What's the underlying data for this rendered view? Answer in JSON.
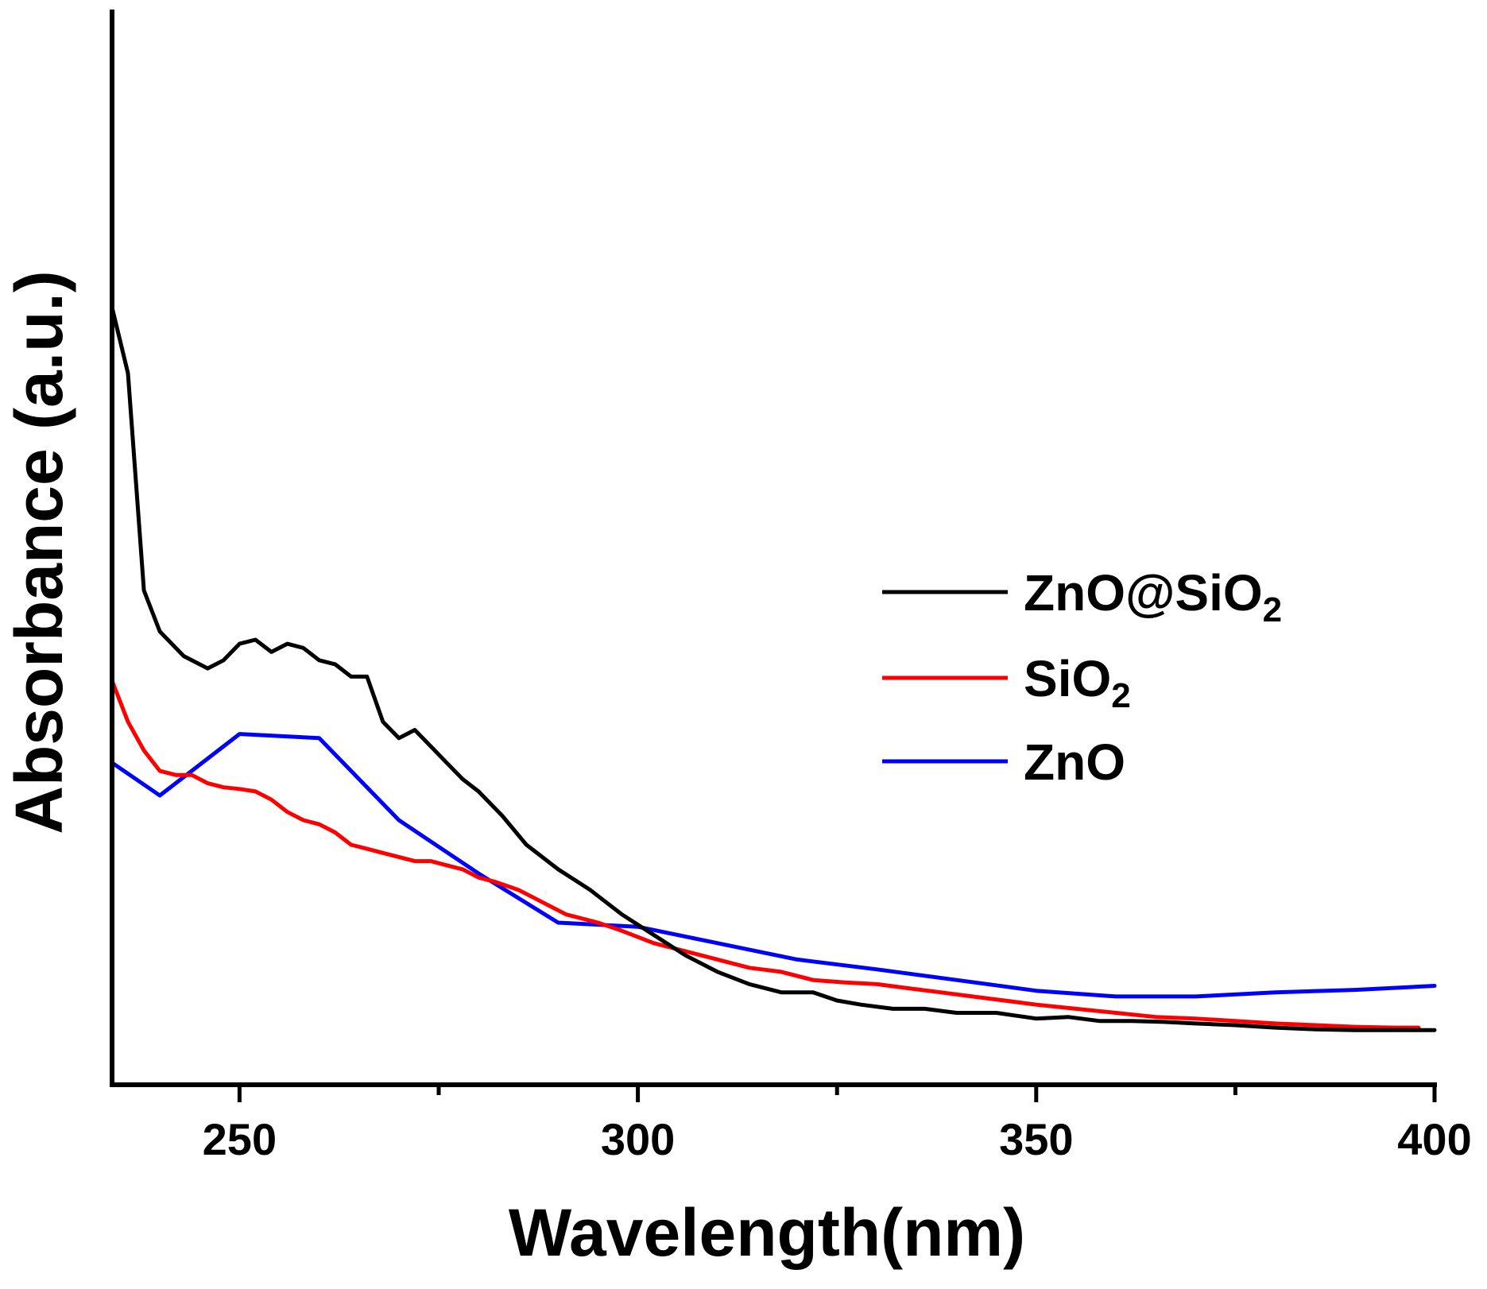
{
  "chart_data": {
    "type": "line",
    "title": "",
    "xlabel": "Wavelength(nm)",
    "ylabel": "Absorbance (a.u.)",
    "xlim": [
      234,
      400
    ],
    "ylim": [
      0,
      100
    ],
    "x_ticks": [
      250,
      300,
      350,
      400
    ],
    "x_tick_labels": [
      "250",
      "300",
      "350",
      "400"
    ],
    "x_minor_ticks": [
      275,
      325,
      375
    ],
    "y_ticks_visible": false,
    "grid": false,
    "legend_position": "right",
    "series": [
      {
        "name": "ZnO@SiO2",
        "label_main": "ZnO@SiO",
        "label_sub": "2",
        "color": "#000000",
        "points": [
          [
            234,
            87.5
          ],
          [
            236,
            79.5
          ],
          [
            238,
            53
          ],
          [
            240,
            48
          ],
          [
            243,
            45
          ],
          [
            246,
            43.5
          ],
          [
            248,
            44.5
          ],
          [
            250,
            46.5
          ],
          [
            252,
            47
          ],
          [
            254,
            45.5
          ],
          [
            256,
            46.5
          ],
          [
            258,
            46
          ],
          [
            260,
            44.5
          ],
          [
            262,
            44
          ],
          [
            264,
            42.5
          ],
          [
            266,
            42.5
          ],
          [
            268,
            37
          ],
          [
            270,
            35
          ],
          [
            272,
            36
          ],
          [
            274,
            34
          ],
          [
            276,
            32
          ],
          [
            278,
            30
          ],
          [
            280,
            28.5
          ],
          [
            283,
            25.5
          ],
          [
            286,
            22
          ],
          [
            290,
            19
          ],
          [
            294,
            16.5
          ],
          [
            298,
            13.5
          ],
          [
            302,
            11
          ],
          [
            306,
            8.5
          ],
          [
            310,
            6.5
          ],
          [
            314,
            5
          ],
          [
            318,
            4
          ],
          [
            322,
            4
          ],
          [
            325,
            3
          ],
          [
            328,
            2.5
          ],
          [
            332,
            2
          ],
          [
            336,
            2
          ],
          [
            340,
            1.5
          ],
          [
            345,
            1.5
          ],
          [
            350,
            0.8
          ],
          [
            354,
            1
          ],
          [
            358,
            0.5
          ],
          [
            362,
            0.5
          ],
          [
            366,
            0.4
          ],
          [
            370,
            0.2
          ],
          [
            375,
            0
          ],
          [
            380,
            -0.3
          ],
          [
            385,
            -0.5
          ],
          [
            390,
            -0.6
          ],
          [
            395,
            -0.6
          ],
          [
            400,
            -0.6
          ]
        ]
      },
      {
        "name": "SiO2",
        "label_main": "SiO",
        "label_sub": "2",
        "color": "#ff0000",
        "points": [
          [
            234,
            42
          ],
          [
            236,
            37
          ],
          [
            238,
            33.5
          ],
          [
            240,
            31
          ],
          [
            242,
            30.5
          ],
          [
            244,
            30.5
          ],
          [
            246,
            29.5
          ],
          [
            248,
            29
          ],
          [
            250,
            28.8
          ],
          [
            252,
            28.5
          ],
          [
            254,
            27.5
          ],
          [
            256,
            26
          ],
          [
            258,
            25
          ],
          [
            260,
            24.5
          ],
          [
            262,
            23.5
          ],
          [
            264,
            22
          ],
          [
            266,
            21.5
          ],
          [
            268,
            21
          ],
          [
            270,
            20.5
          ],
          [
            272,
            20
          ],
          [
            274,
            20
          ],
          [
            276,
            19.5
          ],
          [
            278,
            19
          ],
          [
            280,
            18
          ],
          [
            282,
            17.5
          ],
          [
            285,
            16.5
          ],
          [
            288,
            15
          ],
          [
            291,
            13.5
          ],
          [
            295,
            12.5
          ],
          [
            298,
            11.5
          ],
          [
            302,
            10
          ],
          [
            306,
            9
          ],
          [
            310,
            8
          ],
          [
            314,
            7
          ],
          [
            318,
            6.5
          ],
          [
            322,
            5.5
          ],
          [
            326,
            5.2
          ],
          [
            330,
            5
          ],
          [
            334,
            4.5
          ],
          [
            338,
            4
          ],
          [
            342,
            3.5
          ],
          [
            346,
            3
          ],
          [
            350,
            2.5
          ],
          [
            355,
            2
          ],
          [
            360,
            1.5
          ],
          [
            365,
            1
          ],
          [
            370,
            0.8
          ],
          [
            375,
            0.5
          ],
          [
            380,
            0.2
          ],
          [
            385,
            0
          ],
          [
            390,
            -0.2
          ],
          [
            395,
            -0.3
          ],
          [
            398,
            -0.3
          ]
        ]
      },
      {
        "name": "ZnO",
        "label_main": "ZnO",
        "label_sub": "",
        "color": "#0000ff",
        "points": [
          [
            234,
            32
          ],
          [
            240,
            28
          ],
          [
            250,
            35.5
          ],
          [
            260,
            35
          ],
          [
            270,
            25
          ],
          [
            280,
            18.5
          ],
          [
            290,
            12.5
          ],
          [
            300,
            12
          ],
          [
            310,
            10
          ],
          [
            320,
            8
          ],
          [
            330,
            6.8
          ],
          [
            340,
            5.5
          ],
          [
            350,
            4.2
          ],
          [
            360,
            3.5
          ],
          [
            370,
            3.5
          ],
          [
            380,
            4
          ],
          [
            390,
            4.3
          ],
          [
            400,
            4.8
          ]
        ]
      }
    ]
  }
}
